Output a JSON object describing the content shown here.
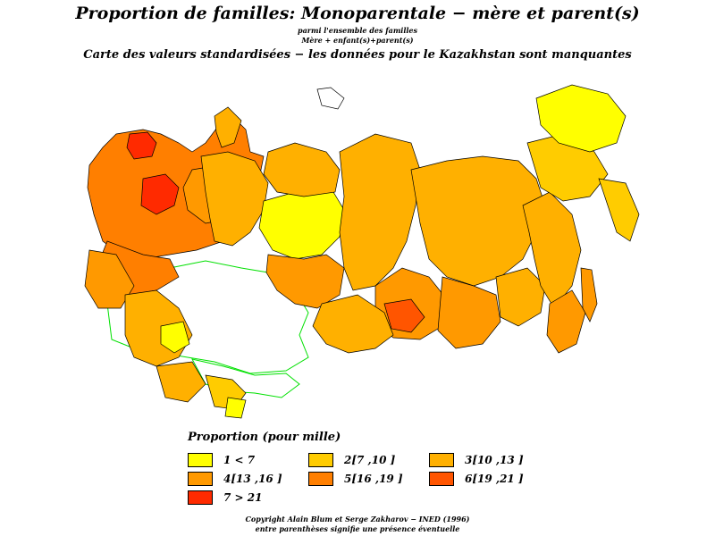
{
  "header": {
    "title": "Proportion de familles: Monoparentale  −  mère et parent(s)",
    "subtitle_1": "parmi l'ensemble des familles",
    "subtitle_2": "Mère + enfant(s)+parent(s)",
    "subtitle_3": "Carte des valeurs standardisées − les données pour le Kazakhstan sont manquantes"
  },
  "legend": {
    "title": "Proportion (pour mille)",
    "classes": [
      {
        "label": "1  <  7",
        "color": "#ffff00"
      },
      {
        "label": "2[7 ,10 ]",
        "color": "#ffcc00"
      },
      {
        "label": "3[10 ,13 ]",
        "color": "#ffb000"
      },
      {
        "label": "4[13 ,16 ]",
        "color": "#ff9900"
      },
      {
        "label": "5[16 ,19 ]",
        "color": "#ff7f00"
      },
      {
        "label": "6[19 ,21 ]",
        "color": "#ff5500"
      },
      {
        "label": "7  >  21",
        "color": "#ff2a00"
      }
    ]
  },
  "map_colors": {
    "missing": "#ffffff",
    "border_missing": "#00e000",
    "region_border": "#000000"
  },
  "footer": {
    "copyright": "Copyright Alain Blum et Serge Zakharov − INED (1996)",
    "note": "entre parenthèses signifie une présence éventuelle"
  }
}
